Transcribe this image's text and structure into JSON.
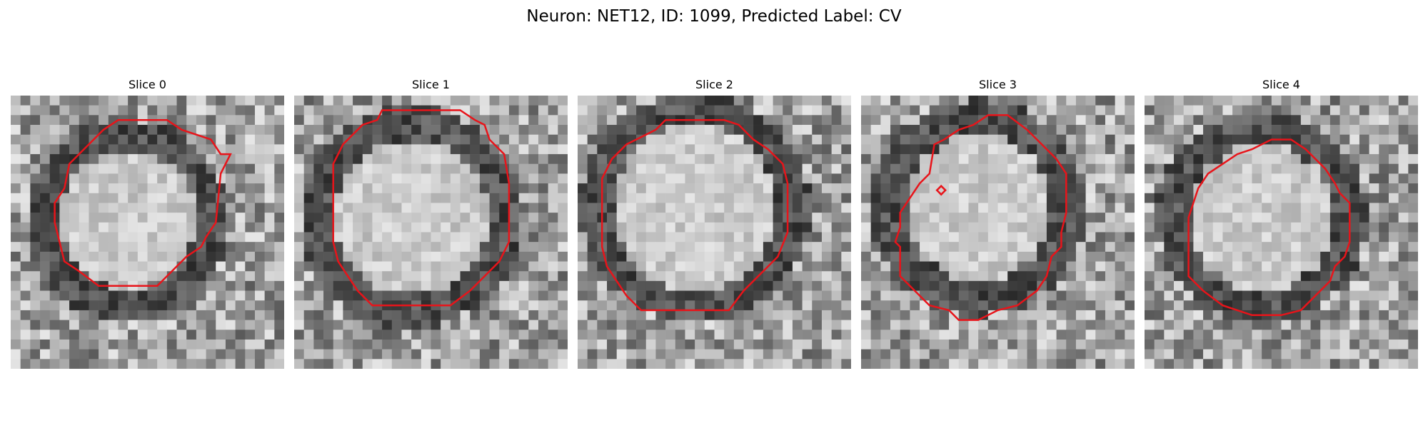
{
  "figure": {
    "title": "Neuron: NET12, ID: 1099, Predicted Label: CV"
  },
  "panels": [
    {
      "title": "Slice 0",
      "image": "grayscale-microscopy-slice",
      "contour_color": "#e8141a"
    },
    {
      "title": "Slice 1",
      "image": "grayscale-microscopy-slice",
      "contour_color": "#e8141a"
    },
    {
      "title": "Slice 2",
      "image": "grayscale-microscopy-slice",
      "contour_color": "#e8141a"
    },
    {
      "title": "Slice 3",
      "image": "grayscale-microscopy-slice",
      "contour_color": "#e8141a"
    },
    {
      "title": "Slice 4",
      "image": "grayscale-microscopy-slice",
      "contour_color": "#e8141a"
    }
  ]
}
